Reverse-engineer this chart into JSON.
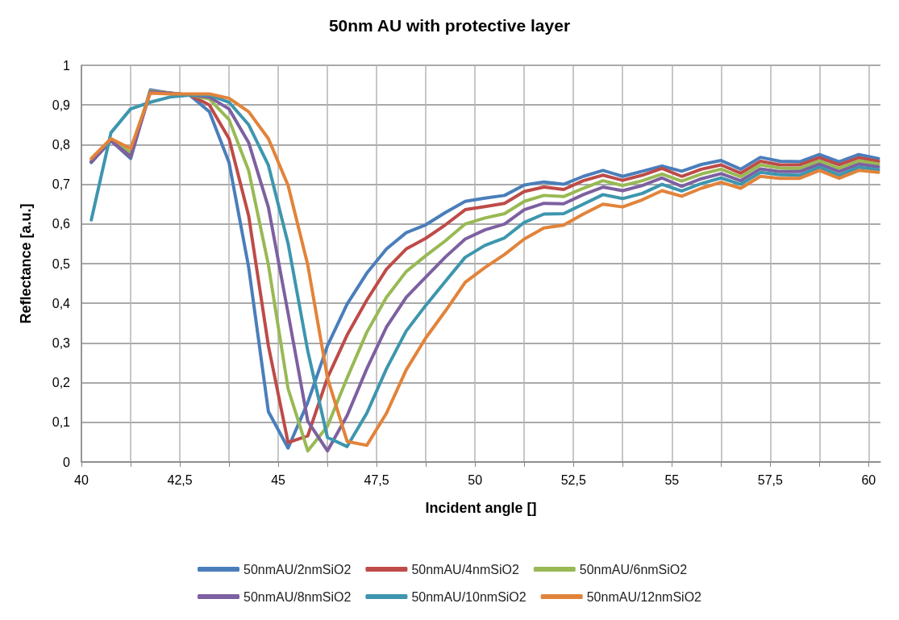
{
  "chart_data": {
    "type": "line",
    "title": "50nm AU with protective layer",
    "xlabel": "Incident angle []",
    "ylabel": "Reflectance [a.u.]",
    "x": [
      40.25,
      40.75,
      41.25,
      41.75,
      42.25,
      42.75,
      43.25,
      43.75,
      44.25,
      44.75,
      45.25,
      45.75,
      46.25,
      46.75,
      47.25,
      47.75,
      48.25,
      48.75,
      49.25,
      49.75,
      50.25,
      50.75,
      51.25,
      51.75,
      52.25,
      52.75,
      53.25,
      53.75,
      54.25,
      54.75,
      55.25,
      55.75,
      56.25,
      56.75,
      57.25,
      57.75,
      58.25,
      58.75,
      59.25,
      59.75,
      60.25
    ],
    "series": [
      {
        "name": "50nmAU/2nmSiO2",
        "color": "#4a7ebb",
        "values": [
          0.755,
          0.81,
          0.765,
          0.938,
          0.93,
          0.925,
          0.883,
          0.755,
          0.49,
          0.127,
          0.035,
          0.15,
          0.293,
          0.398,
          0.476,
          0.537,
          0.578,
          0.598,
          0.629,
          0.657,
          0.665,
          0.672,
          0.698,
          0.706,
          0.7,
          0.72,
          0.735,
          0.72,
          0.733,
          0.746,
          0.733,
          0.75,
          0.76,
          0.738,
          0.768,
          0.758,
          0.757,
          0.775,
          0.757,
          0.775,
          0.765
        ]
      },
      {
        "name": "50nmAU/4nmSiO2",
        "color": "#be4b48",
        "values": [
          0.757,
          0.81,
          0.77,
          0.935,
          0.93,
          0.925,
          0.9,
          0.815,
          0.62,
          0.293,
          0.049,
          0.066,
          0.212,
          0.32,
          0.408,
          0.486,
          0.537,
          0.564,
          0.598,
          0.636,
          0.644,
          0.652,
          0.682,
          0.693,
          0.687,
          0.709,
          0.723,
          0.71,
          0.723,
          0.74,
          0.72,
          0.738,
          0.749,
          0.728,
          0.758,
          0.749,
          0.749,
          0.767,
          0.749,
          0.767,
          0.758
        ]
      },
      {
        "name": "50nmAU/6nmSiO2",
        "color": "#98b954",
        "values": [
          0.76,
          0.81,
          0.78,
          0.935,
          0.93,
          0.925,
          0.915,
          0.863,
          0.734,
          0.497,
          0.185,
          0.028,
          0.09,
          0.212,
          0.327,
          0.415,
          0.48,
          0.52,
          0.558,
          0.6,
          0.615,
          0.626,
          0.657,
          0.672,
          0.669,
          0.69,
          0.709,
          0.697,
          0.709,
          0.726,
          0.708,
          0.726,
          0.738,
          0.719,
          0.749,
          0.741,
          0.74,
          0.759,
          0.74,
          0.759,
          0.751
        ]
      },
      {
        "name": "50nmAU/8nmSiO2",
        "color": "#7d60a0",
        "values": [
          0.757,
          0.81,
          0.77,
          0.933,
          0.93,
          0.925,
          0.92,
          0.89,
          0.805,
          0.642,
          0.375,
          0.103,
          0.028,
          0.117,
          0.235,
          0.34,
          0.415,
          0.466,
          0.517,
          0.562,
          0.585,
          0.6,
          0.636,
          0.652,
          0.651,
          0.674,
          0.693,
          0.684,
          0.697,
          0.716,
          0.695,
          0.714,
          0.727,
          0.709,
          0.739,
          0.732,
          0.732,
          0.751,
          0.732,
          0.751,
          0.744
        ]
      },
      {
        "name": "50nmAU/10nmSiO2",
        "color": "#3d96ae",
        "values": [
          0.61,
          0.83,
          0.89,
          0.907,
          0.92,
          0.925,
          0.925,
          0.907,
          0.85,
          0.748,
          0.551,
          0.28,
          0.062,
          0.039,
          0.123,
          0.235,
          0.33,
          0.395,
          0.456,
          0.516,
          0.546,
          0.565,
          0.604,
          0.625,
          0.626,
          0.65,
          0.674,
          0.664,
          0.677,
          0.7,
          0.683,
          0.702,
          0.716,
          0.7,
          0.73,
          0.724,
          0.723,
          0.743,
          0.723,
          0.743,
          0.737
        ]
      },
      {
        "name": "50nmAU/12nmSiO2",
        "color": "#e2833a",
        "values": [
          0.765,
          0.815,
          0.79,
          0.93,
          0.928,
          0.928,
          0.928,
          0.917,
          0.883,
          0.815,
          0.697,
          0.497,
          0.212,
          0.052,
          0.042,
          0.123,
          0.232,
          0.313,
          0.381,
          0.453,
          0.49,
          0.523,
          0.562,
          0.59,
          0.597,
          0.625,
          0.65,
          0.643,
          0.661,
          0.684,
          0.67,
          0.69,
          0.705,
          0.69,
          0.72,
          0.715,
          0.715,
          0.735,
          0.715,
          0.735,
          0.73
        ]
      }
    ],
    "xlim": [
      40,
      60.3
    ],
    "xticks": [
      40,
      {
        "value": 41.25,
        "label": null
      },
      {
        "value": 42.5,
        "label": "42,5"
      },
      {
        "value": 43.75,
        "label": null
      },
      45,
      {
        "value": 46.25,
        "label": null
      },
      {
        "value": 47.5,
        "label": "47,5"
      },
      {
        "value": 48.75,
        "label": null
      },
      50,
      {
        "value": 51.25,
        "label": null
      },
      {
        "value": 52.5,
        "label": "52,5"
      },
      {
        "value": 53.75,
        "label": null
      },
      55,
      {
        "value": 56.25,
        "label": null
      },
      {
        "value": 57.5,
        "label": "57,5"
      },
      {
        "value": 58.75,
        "label": null
      },
      60
    ],
    "ylim": [
      0,
      1
    ],
    "yticks": [
      0,
      {
        "value": 0.1,
        "label": "0,1"
      },
      {
        "value": 0.2,
        "label": "0,2"
      },
      {
        "value": 0.3,
        "label": "0,3"
      },
      {
        "value": 0.4,
        "label": "0,4"
      },
      {
        "value": 0.5,
        "label": "0,5"
      },
      {
        "value": 0.6,
        "label": "0,6"
      },
      {
        "value": 0.7,
        "label": "0,7"
      },
      {
        "value": 0.8,
        "label": "0,8"
      },
      {
        "value": 0.9,
        "label": "0,9"
      },
      1
    ],
    "grid": true,
    "legend": "bottom",
    "marker": "none",
    "line_style": "solid"
  }
}
